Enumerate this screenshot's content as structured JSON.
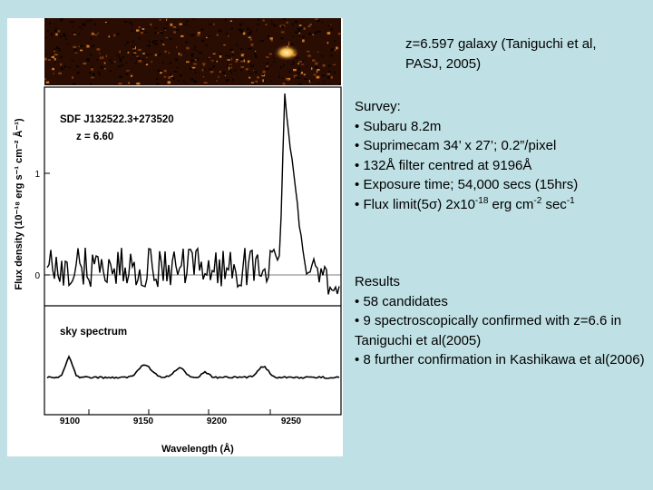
{
  "caption": "z=6.597 galaxy (Taniguchi et al, PASJ, 2005)",
  "survey": {
    "heading": "Survey:",
    "bullet": "•",
    "items": [
      "Subaru 8.2m",
      "Suprimecam 34’ x 27’; 0.2”/pixel",
      "132Å filter centred at 9196Å",
      "Exposure time; 54,000 secs (15hrs)"
    ],
    "flux": {
      "prefix": "Flux limit(5",
      "sigma": "σ",
      "mid": ") 2x10",
      "exp1": "-18",
      "unit1": " erg cm",
      "exp2": "-2",
      "unit2": " sec",
      "exp3": "-1"
    }
  },
  "results": {
    "heading": "Results",
    "bullet": "•",
    "items": [
      "58 candidates",
      "9 spectroscopically confirmed with z=6.6 in Taniguchi et al(2005)",
      "8 further confirmation in  Kashikawa et al(2006)"
    ]
  },
  "figure": {
    "object_name": "SDF J132522.3+273520",
    "redshift": "z = 6.60",
    "sky_label": "sky spectrum",
    "y_axis_label": "Flux density  (10⁻¹⁸ erg s⁻¹ cm⁻² Å⁻¹)",
    "x_axis_label": "Wavelength  (Å)",
    "y_ticks": [
      "1",
      "0"
    ],
    "x_ticks": [
      "9100",
      "9150",
      "9200",
      "9250"
    ]
  }
}
